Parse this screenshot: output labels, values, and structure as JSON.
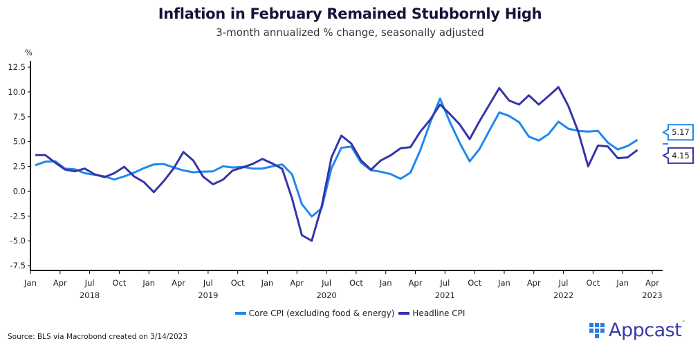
{
  "header": {
    "title": "Inflation in February Remained Stubbornly High",
    "subtitle": "3-month annualized % change, seasonally adjusted"
  },
  "footer": {
    "source": "Source: BLS via Macrobond created on 3/14/2023",
    "logo_text": "Appcast",
    "logo_tm": "™"
  },
  "colors": {
    "core": "#1e88f0",
    "headline": "#3535a8",
    "axis": "#000000"
  },
  "chart_data": {
    "type": "line",
    "title": "Inflation in February Remained Stubbornly High",
    "subtitle": "3-month annualized % change, seasonally adjusted",
    "ylabel": "%",
    "xlabel": "",
    "ylim": [
      -8.5,
      13.5
    ],
    "yticks": [
      12.5,
      10.0,
      7.5,
      5.0,
      2.5,
      0.0,
      -2.5,
      -5.0,
      -7.5
    ],
    "ytick_labels": [
      "12.5",
      "10.0",
      "7.5",
      "5.0",
      "2.5",
      "0.0",
      "-2.5",
      "-5.0",
      "-7.5"
    ],
    "x_start": "2018-01",
    "x_end": "2023-05",
    "xticks_months": [
      "Jan",
      "Apr",
      "Jul",
      "Oct",
      "Jan",
      "Apr",
      "Jul",
      "Oct",
      "Jan",
      "Apr",
      "Jul",
      "Oct",
      "Jan",
      "Apr",
      "Jul",
      "Oct",
      "Jan",
      "Apr",
      "Jul",
      "Oct",
      "Jan",
      "Apr"
    ],
    "xticks_years": [
      {
        "label": "2018",
        "under_index": 2
      },
      {
        "label": "2019",
        "under_index": 6
      },
      {
        "label": "2020",
        "under_index": 10
      },
      {
        "label": "2021",
        "under_index": 14
      },
      {
        "label": "2022",
        "under_index": 18
      },
      {
        "label": "2023",
        "under_index": 21
      }
    ],
    "x": [
      "2018-01",
      "2018-02",
      "2018-03",
      "2018-04",
      "2018-05",
      "2018-06",
      "2018-07",
      "2018-08",
      "2018-09",
      "2018-10",
      "2018-11",
      "2018-12",
      "2019-01",
      "2019-02",
      "2019-03",
      "2019-04",
      "2019-05",
      "2019-06",
      "2019-07",
      "2019-08",
      "2019-09",
      "2019-10",
      "2019-11",
      "2019-12",
      "2020-01",
      "2020-02",
      "2020-03",
      "2020-04",
      "2020-05",
      "2020-06",
      "2020-07",
      "2020-08",
      "2020-09",
      "2020-10",
      "2020-11",
      "2020-12",
      "2021-01",
      "2021-02",
      "2021-03",
      "2021-04",
      "2021-05",
      "2021-06",
      "2021-07",
      "2021-08",
      "2021-09",
      "2021-10",
      "2021-11",
      "2021-12",
      "2022-01",
      "2022-02",
      "2022-03",
      "2022-04",
      "2022-05",
      "2022-06",
      "2022-07",
      "2022-08",
      "2022-09",
      "2022-10",
      "2022-11",
      "2022-12",
      "2023-01",
      "2023-02"
    ],
    "series": [
      {
        "name": "Core CPI (excluding food & energy)",
        "color": "#1e88f0",
        "end_label": "5.17",
        "values": [
          2.62,
          2.97,
          3.02,
          2.28,
          2.21,
          1.81,
          1.65,
          1.49,
          1.18,
          1.49,
          1.87,
          2.33,
          2.7,
          2.74,
          2.39,
          2.09,
          1.9,
          1.97,
          2.0,
          2.51,
          2.39,
          2.46,
          2.28,
          2.28,
          2.5,
          2.7,
          1.7,
          -1.3,
          -2.55,
          -1.72,
          2.3,
          4.37,
          4.5,
          2.88,
          2.12,
          1.96,
          1.72,
          1.25,
          1.87,
          4.14,
          6.9,
          9.34,
          6.95,
          4.86,
          3.0,
          4.26,
          6.12,
          7.93,
          7.58,
          6.95,
          5.5,
          5.1,
          5.76,
          7.0,
          6.29,
          6.08,
          6.0,
          6.08,
          4.9,
          4.2,
          4.55,
          5.17
        ]
      },
      {
        "name": "Headline CPI",
        "color": "#3535a8",
        "end_label": "4.15",
        "values": [
          3.64,
          3.64,
          2.88,
          2.19,
          2.0,
          2.28,
          1.7,
          1.42,
          1.81,
          2.46,
          1.49,
          0.91,
          -0.1,
          1.0,
          2.28,
          3.95,
          3.09,
          1.46,
          0.7,
          1.16,
          2.09,
          2.39,
          2.74,
          3.25,
          2.8,
          2.26,
          -0.72,
          -4.43,
          -5.0,
          -1.53,
          3.4,
          5.6,
          4.8,
          3.1,
          2.16,
          3.1,
          3.62,
          4.32,
          4.44,
          6.0,
          7.2,
          8.73,
          7.76,
          6.72,
          5.25,
          7.06,
          8.73,
          10.39,
          9.13,
          8.73,
          9.66,
          8.73,
          9.59,
          10.49,
          8.58,
          6.0,
          2.5,
          4.6,
          4.5,
          3.33,
          3.4,
          4.15
        ]
      }
    ],
    "legend": [
      "Core CPI (excluding food & energy)",
      "Headline CPI"
    ],
    "legend_position": "bottom-center",
    "grid": false
  }
}
